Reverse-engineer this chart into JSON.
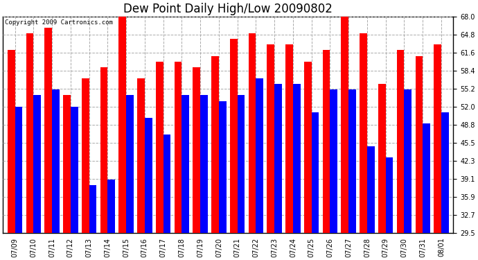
{
  "title": "Dew Point Daily High/Low 20090802",
  "copyright": "Copyright 2009 Cartronics.com",
  "dates": [
    "07/09",
    "07/10",
    "07/11",
    "07/12",
    "07/13",
    "07/14",
    "07/15",
    "07/16",
    "07/17",
    "07/18",
    "07/19",
    "07/20",
    "07/21",
    "07/22",
    "07/23",
    "07/24",
    "07/25",
    "07/26",
    "07/27",
    "07/28",
    "07/29",
    "07/30",
    "07/31",
    "08/01"
  ],
  "highs": [
    62,
    65,
    66,
    54,
    57,
    59,
    69,
    57,
    60,
    60,
    59,
    61,
    64,
    65,
    63,
    63,
    60,
    62,
    68,
    65,
    56,
    62,
    61,
    63
  ],
  "lows": [
    52,
    54,
    55,
    52,
    38,
    39,
    54,
    50,
    47,
    54,
    54,
    53,
    54,
    57,
    56,
    56,
    51,
    55,
    55,
    45,
    43,
    55,
    49,
    51
  ],
  "high_color": "#ff0000",
  "low_color": "#0000ff",
  "bg_color": "#ffffff",
  "grid_color": "#aaaaaa",
  "ylim_min": 29.5,
  "ylim_max": 68.0,
  "yticks": [
    29.5,
    32.7,
    35.9,
    39.1,
    42.3,
    45.5,
    48.8,
    52.0,
    55.2,
    58.4,
    61.6,
    64.8,
    68.0
  ],
  "bar_width": 0.4,
  "title_fontsize": 12,
  "tick_fontsize": 7,
  "copyright_fontsize": 6.5,
  "fig_width": 6.9,
  "fig_height": 3.75,
  "dpi": 100
}
